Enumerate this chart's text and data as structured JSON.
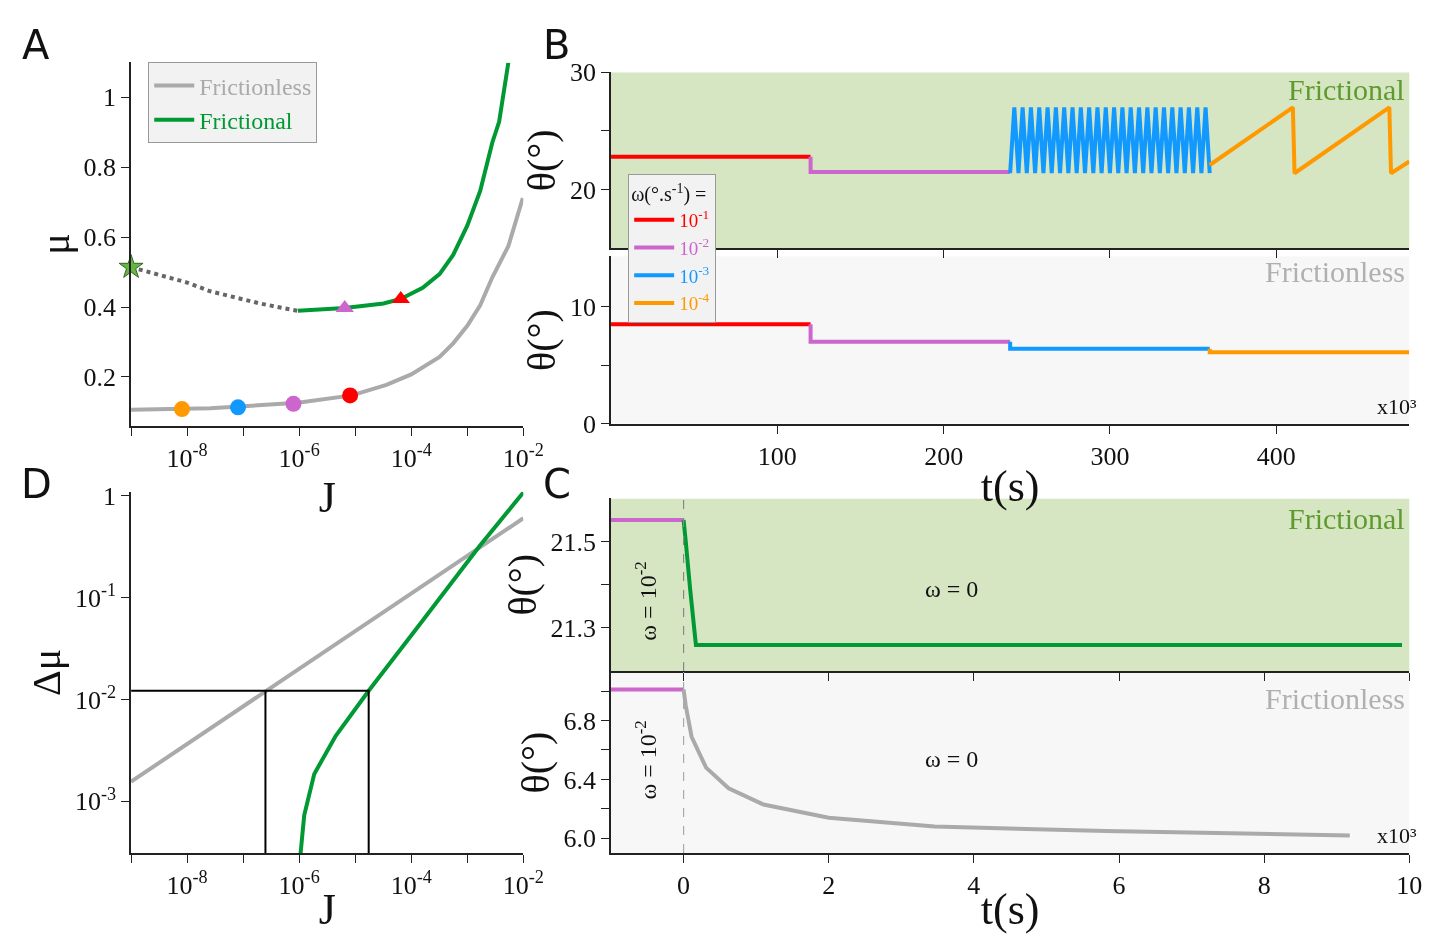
{
  "chart_data": [
    {
      "type": "line",
      "annotations": [
        "A"
      ],
      "xlabel": "J",
      "ylabel": "μ",
      "log": "x",
      "legend": "top left",
      "xlim": [
        1e-09,
        0.01
      ],
      "ylim": [
        0.06,
        1.1
      ],
      "xticks": [
        {
          "value": 1e-09,
          "label": null
        },
        {
          "value": 1e-08,
          "label": "10$^{-8}$"
        },
        {
          "value": 1e-07,
          "label": null
        },
        {
          "value": 1e-06,
          "label": "10$^{-6}$"
        },
        {
          "value": 1e-05,
          "label": null
        },
        {
          "value": 0.0001,
          "label": "10$^{-4}$"
        },
        {
          "value": 0.001,
          "label": null
        },
        {
          "value": 0.01,
          "label": "10$^{-2}$"
        }
      ],
      "yticks": [
        0.2,
        0.4,
        0.6,
        0.8,
        1
      ],
      "series": [
        {
          "name": "Frictionless",
          "color": "#aaaaaa",
          "x": [
            1e-09,
            2.6e-08,
            9.5e-07,
            8.7e-06,
            3.6e-05,
            0.0001,
            0.00032,
            0.00056,
            0.001,
            0.0017,
            0.0028,
            0.0054,
            0.0098
          ],
          "values": [
            0.106,
            0.11,
            0.126,
            0.147,
            0.177,
            0.207,
            0.257,
            0.296,
            0.346,
            0.405,
            0.485,
            0.574,
            0.712
          ]
        },
        {
          "name": "Frictional",
          "color": "#009933",
          "x": [
            9.5e-07,
            6.5e-06,
            3.2e-05,
            6.5e-05,
            0.00016,
            0.00032,
            0.00056,
            0.001,
            0.0017,
            0.0028,
            0.0037,
            0.0054
          ],
          "values": [
            0.389,
            0.397,
            0.41,
            0.423,
            0.455,
            0.494,
            0.549,
            0.633,
            0.732,
            0.871,
            0.93,
            1.099
          ]
        },
        {
          "color": "#666666",
          "line_style": "dotted",
          "x": [
            1e-09,
            1e-08,
            2.6e-08,
            2e-07,
            9.5e-07
          ],
          "values": [
            0.514,
            0.47,
            0.445,
            0.41,
            0.389
          ]
        },
        {
          "type": "scatter",
          "marker": "circle",
          "colors": [
            "#ff9900",
            "#1199ff",
            "#cc66cc",
            "#ff0000"
          ],
          "x": [
            8.1e-09,
            8.1e-08,
            7.9e-07,
            8.1e-06
          ],
          "values": [
            0.108,
            0.113,
            0.123,
            0.147
          ]
        },
        {
          "type": "scatter",
          "marker": "triangle",
          "colors": [
            "#cc66cc",
            "#ff0000"
          ],
          "x": [
            6.5e-06,
            6.5e-05
          ],
          "values": [
            0.397,
            0.423
          ]
        },
        {
          "type": "scatter",
          "marker": "star",
          "color": "#66b544",
          "x": [
            1e-09
          ],
          "values": [
            0.514
          ]
        }
      ]
    },
    {
      "type": "line",
      "annotations": [
        "B",
        "Frictional"
      ],
      "ylabel": "θ(°)",
      "legend": "bottom left",
      "legend_title": "ω(°.s$^{-1}$) =",
      "tick_labels": "y",
      "xlim": [
        0,
        480
      ],
      "ylim": [
        15,
        30
      ],
      "xticks": [
        100,
        200,
        300,
        400
      ],
      "yticks": [
        20,
        {
          "value": 25,
          "label": null
        },
        30
      ],
      "bands": [
        {
          "axis": "y",
          "from": 15,
          "to": 30,
          "color": "#d6e6c3"
        }
      ],
      "series": [
        {
          "name": "10$^{-1}$",
          "color": "#ff0000",
          "x": [
            0,
            120
          ],
          "values": [
            22.8,
            22.8
          ]
        },
        {
          "name": "10$^{-2}$",
          "color": "#cc66cc",
          "x": [
            120,
            120,
            240
          ],
          "values": [
            22.8,
            21.5,
            21.5
          ]
        },
        {
          "name": "10$^{-3}$",
          "color": "#1199ff",
          "x": [
            240,
            242.5,
            245,
            247.5,
            250,
            252.5,
            255,
            257.5,
            260,
            262.5,
            265,
            267.5,
            270,
            272.5,
            275,
            277.5,
            280,
            282.5,
            285,
            287.5,
            290,
            292.5,
            295,
            297.5,
            300,
            302.5,
            305,
            307.5,
            310,
            312.5,
            315,
            317.5,
            320,
            322.5,
            325,
            327.5,
            330,
            332.5,
            335,
            337.5,
            340,
            342.5,
            345,
            347.5,
            350,
            352.5,
            355,
            357.5,
            360
          ],
          "values": [
            21.4,
            27,
            21.4,
            27,
            21.4,
            27,
            21.4,
            27,
            21.4,
            27,
            21.4,
            27,
            21.4,
            27,
            21.4,
            27,
            21.4,
            27,
            21.4,
            27,
            21.4,
            27,
            21.4,
            27,
            21.4,
            27,
            21.4,
            27,
            21.4,
            27,
            21.4,
            27,
            21.4,
            27,
            21.4,
            27,
            21.4,
            27,
            21.4,
            27,
            21.4,
            27,
            21.4,
            27,
            21.4,
            27,
            21.4,
            27,
            21.4
          ]
        },
        {
          "name": "10$^{-4}$",
          "color": "#ff9900",
          "x": [
            360,
            410,
            411,
            468,
            469,
            480
          ],
          "values": [
            22.1,
            27,
            21.4,
            27,
            21.4,
            22.4
          ]
        }
      ]
    },
    {
      "type": "line",
      "annotations": [
        "Frictionless",
        "x10³"
      ],
      "xlabel": "t(s)",
      "ylabel": "θ(°)",
      "xlim": [
        0,
        480
      ],
      "ylim": [
        0,
        14.3
      ],
      "xticks": [
        100,
        200,
        300,
        400
      ],
      "yticks": [
        0,
        {
          "value": 5,
          "label": null
        },
        10
      ],
      "bands": [
        {
          "axis": "y",
          "from": 0,
          "to": 14.3,
          "color": "#f7f7f7"
        }
      ],
      "series": [
        {
          "color": "#ff0000",
          "x": [
            0,
            120
          ],
          "values": [
            8.5,
            8.5
          ]
        },
        {
          "color": "#cc66cc",
          "x": [
            120,
            120,
            240
          ],
          "values": [
            8.5,
            7.0,
            7.0
          ]
        },
        {
          "color": "#1199ff",
          "x": [
            240,
            240,
            360
          ],
          "values": [
            7.0,
            6.4,
            6.4
          ]
        },
        {
          "color": "#ff9900",
          "x": [
            360,
            360,
            480
          ],
          "values": [
            6.4,
            6.1,
            6.1
          ]
        }
      ]
    },
    {
      "type": "line",
      "annotations": [
        "D"
      ],
      "xlabel": "J",
      "ylabel": "Δμ",
      "log": "xy",
      "xlim": [
        1e-09,
        0.01
      ],
      "ylim": [
        0.00031,
        1.1
      ],
      "xticks": [
        {
          "value": 1e-09,
          "label": null
        },
        {
          "value": 1e-08,
          "label": "10$^{-8}$"
        },
        {
          "value": 1e-07,
          "label": null
        },
        {
          "value": 1e-06,
          "label": "10$^{-6}$"
        },
        {
          "value": 1e-05,
          "label": null
        },
        {
          "value": 0.0001,
          "label": "10$^{-4}$"
        },
        {
          "value": 0.001,
          "label": null
        },
        {
          "value": 0.01,
          "label": "10$^{-2}$"
        }
      ],
      "yticks": [
        {
          "value": 0.001,
          "label": "10$^{-3}$"
        },
        {
          "value": 0.01,
          "label": "10$^{-2}$"
        },
        {
          "value": 0.1,
          "label": "10$^{-1}$"
        },
        1
      ],
      "series": [
        {
          "color": "#aaaaaa",
          "x": [
            1e-09,
            0.01
          ],
          "values": [
            0.00156,
            0.603
          ]
        },
        {
          "color": "#009933",
          "x": [
            1.06e-06,
            1.23e-06,
            1.86e-06,
            4.5e-06,
            1.74e-05,
            0.000138,
            0.00166,
            0.01
          ],
          "values": [
            0.00031,
            0.00073,
            0.00186,
            0.0044,
            0.0122,
            0.0536,
            0.322,
            1.08
          ]
        },
        {
          "color": "#000000",
          "x": [
            1e-09,
            1.74e-05,
            1.74e-05
          ],
          "values": [
            0.0122,
            0.0122,
            0.00031
          ]
        },
        {
          "color": "#000000",
          "x": [
            2.5e-07,
            2.5e-07
          ],
          "values": [
            0.0122,
            0.00031
          ]
        }
      ]
    },
    {
      "type": "line",
      "annotations": [
        "C",
        "Frictional",
        "ω = 10$^{-2}$",
        "ω = 0"
      ],
      "ylabel": "θ(°)",
      "tick_labels": "y",
      "xlim": [
        -1,
        10
      ],
      "ylim": [
        21.2,
        21.6
      ],
      "xticks": [
        0,
        2,
        4,
        6,
        8,
        10
      ],
      "yticks": [
        21.3,
        {
          "value": 21.4,
          "label": null
        },
        21.5
      ],
      "bands": [
        {
          "axis": "y",
          "from": 21.2,
          "to": 21.6,
          "color": "#d6e6c3"
        }
      ],
      "ref_lines": [
        {
          "axis": "x",
          "value": 0,
          "color": "#888888",
          "line_style": "dashed"
        }
      ],
      "series": [
        {
          "color": "#cc66cc",
          "x": [
            -1,
            0
          ],
          "values": [
            21.55,
            21.55
          ]
        },
        {
          "color": "#009933",
          "x": [
            0,
            0.03,
            0.09,
            0.17,
            9.9
          ],
          "values": [
            21.55,
            21.5,
            21.39,
            21.26,
            21.26
          ]
        }
      ]
    },
    {
      "type": "line",
      "annotations": [
        "Frictionless",
        "ω = 10$^{-2}$",
        "ω = 0",
        "x10³"
      ],
      "xlabel": "t(s)",
      "ylabel": "θ(°)",
      "xlim": [
        -1,
        10
      ],
      "ylim": [
        5.9,
        7.13
      ],
      "xticks": [
        0,
        2,
        4,
        6,
        8,
        10
      ],
      "yticks": [
        {
          "value": 6,
          "label": "6.0"
        },
        {
          "value": 6.2,
          "label": null
        },
        6.4,
        {
          "value": 6.6,
          "label": null
        },
        6.8,
        {
          "value": 7,
          "label": null
        }
      ],
      "bands": [
        {
          "axis": "y",
          "from": 5.9,
          "to": 7.13,
          "color": "#f7f7f7"
        }
      ],
      "ref_lines": [
        {
          "axis": "x",
          "value": 0,
          "color": "#aaaaaa",
          "line_style": "dashed"
        }
      ],
      "series": [
        {
          "color": "#cc66cc",
          "x": [
            -1,
            0
          ],
          "values": [
            7.01,
            7.01
          ]
        },
        {
          "color": "#aaaaaa",
          "x": [
            0,
            0.03,
            0.11,
            0.31,
            0.62,
            1.1,
            2.0,
            3.46,
            5.82,
            9.18
          ],
          "values": [
            7.01,
            6.9,
            6.69,
            6.48,
            6.34,
            6.23,
            6.14,
            6.08,
            6.05,
            6.02
          ]
        }
      ]
    }
  ]
}
